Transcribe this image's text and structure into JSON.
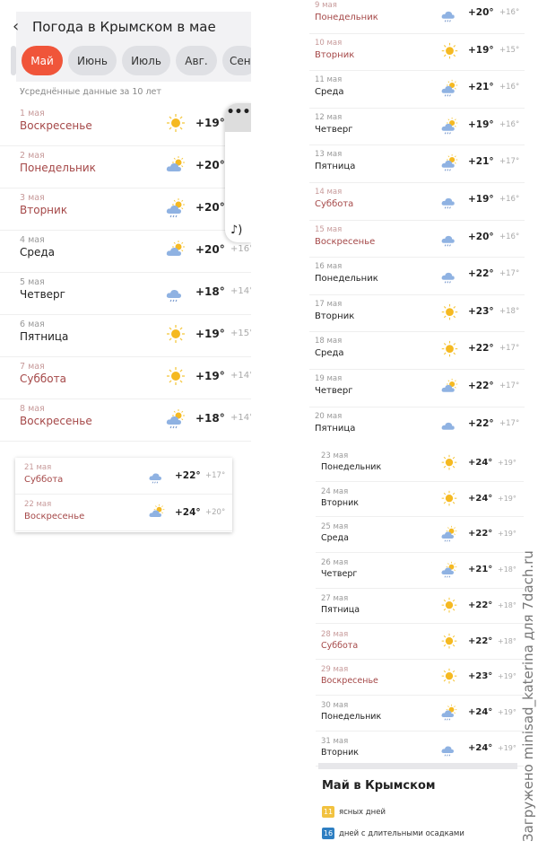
{
  "header": {
    "title": "Погода в Крымском в мае",
    "tabs": [
      "",
      "Май",
      "Июнь",
      "Июль",
      "Авг.",
      "Сен"
    ],
    "active_tab": "Май",
    "subtitle": "Усреднённые данные за 10 лет"
  },
  "colors": {
    "accent": "#f0553a",
    "weekend": "#a54848",
    "clear_badge": "#f2c240",
    "rain_badge": "#2f7fc2"
  },
  "panel1": [
    {
      "date": "1 мая",
      "day": "Воскресенье",
      "icon": "sun-icon",
      "day_t": "+19°",
      "night_t": "",
      "red": true
    },
    {
      "date": "2 мая",
      "day": "Понедельник",
      "icon": "partly-cloudy-icon",
      "day_t": "+20°",
      "night_t": "",
      "red": true
    },
    {
      "date": "3 мая",
      "day": "Вторник",
      "icon": "partly-cloudy-rain-icon",
      "day_t": "+20°",
      "night_t": "",
      "red": true
    },
    {
      "date": "4 мая",
      "day": "Среда",
      "icon": "partly-cloudy-icon",
      "day_t": "+20°",
      "night_t": "+16°",
      "red": false
    },
    {
      "date": "5 мая",
      "day": "Четверг",
      "icon": "cloud-rain-icon",
      "day_t": "+18°",
      "night_t": "+14°",
      "red": false
    },
    {
      "date": "6 мая",
      "day": "Пятница",
      "icon": "sun-icon",
      "day_t": "+19°",
      "night_t": "+15°",
      "red": false
    },
    {
      "date": "7 мая",
      "day": "Суббота",
      "icon": "sun-icon",
      "day_t": "+19°",
      "night_t": "+14°",
      "red": true
    },
    {
      "date": "8 мая",
      "day": "Воскресенье",
      "icon": "partly-cloudy-rain-icon",
      "day_t": "+18°",
      "night_t": "+14°",
      "red": true
    }
  ],
  "panel2": [
    {
      "date": "21 мая",
      "day": "Суббота",
      "icon": "cloud-rain-icon",
      "day_t": "+22°",
      "night_t": "+17°",
      "red": true
    },
    {
      "date": "22 мая",
      "day": "Воскресенье",
      "icon": "partly-cloudy-icon",
      "day_t": "+24°",
      "night_t": "+20°",
      "red": true
    }
  ],
  "panel3": [
    {
      "date": "9 мая",
      "day": "Понедельник",
      "icon": "cloud-rain-icon",
      "day_t": "+20°",
      "night_t": "+16°",
      "red": true
    },
    {
      "date": "10 мая",
      "day": "Вторник",
      "icon": "sun-icon",
      "day_t": "+19°",
      "night_t": "+15°",
      "red": true
    },
    {
      "date": "11 мая",
      "day": "Среда",
      "icon": "partly-cloudy-rain-icon",
      "day_t": "+21°",
      "night_t": "+16°",
      "red": false
    },
    {
      "date": "12 мая",
      "day": "Четверг",
      "icon": "partly-cloudy-rain-icon",
      "day_t": "+19°",
      "night_t": "+16°",
      "red": false
    },
    {
      "date": "13 мая",
      "day": "Пятница",
      "icon": "partly-cloudy-rain-icon",
      "day_t": "+21°",
      "night_t": "+17°",
      "red": false
    },
    {
      "date": "14 мая",
      "day": "Суббота",
      "icon": "cloud-rain-icon",
      "day_t": "+19°",
      "night_t": "+16°",
      "red": true
    },
    {
      "date": "15 мая",
      "day": "Воскресенье",
      "icon": "cloud-rain-icon",
      "day_t": "+20°",
      "night_t": "+16°",
      "red": true
    },
    {
      "date": "16 мая",
      "day": "Понедельник",
      "icon": "cloud-rain-icon",
      "day_t": "+22°",
      "night_t": "+17°",
      "red": false
    },
    {
      "date": "17 мая",
      "day": "Вторник",
      "icon": "sun-icon",
      "day_t": "+23°",
      "night_t": "+18°",
      "red": false
    },
    {
      "date": "18 мая",
      "day": "Среда",
      "icon": "sun-icon",
      "day_t": "+22°",
      "night_t": "+17°",
      "red": false
    },
    {
      "date": "19 мая",
      "day": "Четверг",
      "icon": "partly-cloudy-icon",
      "day_t": "+22°",
      "night_t": "+17°",
      "red": false
    },
    {
      "date": "20 мая",
      "day": "Пятница",
      "icon": "cloud-icon",
      "day_t": "+22°",
      "night_t": "+17°",
      "red": false
    }
  ],
  "panel4": [
    {
      "date": "23 мая",
      "day": "Понедельник",
      "icon": "sun-icon",
      "day_t": "+24°",
      "night_t": "+19°",
      "red": false
    },
    {
      "date": "24 мая",
      "day": "Вторник",
      "icon": "sun-icon",
      "day_t": "+24°",
      "night_t": "+19°",
      "red": false
    },
    {
      "date": "25 мая",
      "day": "Среда",
      "icon": "partly-cloudy-rain-icon",
      "day_t": "+22°",
      "night_t": "+19°",
      "red": false
    },
    {
      "date": "26 мая",
      "day": "Четверг",
      "icon": "partly-cloudy-rain-icon",
      "day_t": "+21°",
      "night_t": "+18°",
      "red": false
    },
    {
      "date": "27 мая",
      "day": "Пятница",
      "icon": "sun-icon",
      "day_t": "+22°",
      "night_t": "+18°",
      "red": false
    },
    {
      "date": "28 мая",
      "day": "Суббота",
      "icon": "sun-icon",
      "day_t": "+22°",
      "night_t": "+18°",
      "red": true
    },
    {
      "date": "29 мая",
      "day": "Воскресенье",
      "icon": "sun-icon",
      "day_t": "+23°",
      "night_t": "+19°",
      "red": true
    },
    {
      "date": "30 мая",
      "day": "Понедельник",
      "icon": "partly-cloudy-rain-icon",
      "day_t": "+24°",
      "night_t": "+19°",
      "red": false
    },
    {
      "date": "31 мая",
      "day": "Вторник",
      "icon": "cloud-rain-icon",
      "day_t": "+24°",
      "night_t": "+19°",
      "red": false
    }
  ],
  "summary": {
    "title": "Май в Крымском",
    "clear_count": "11",
    "clear_label": "ясных дней",
    "rain_count": "16",
    "rain_label": "дней с длительными осадками"
  },
  "overlay": {
    "more": "•••",
    "sound": "♪)"
  },
  "watermark": "Загружено minisad_katerina для 7dach.ru"
}
